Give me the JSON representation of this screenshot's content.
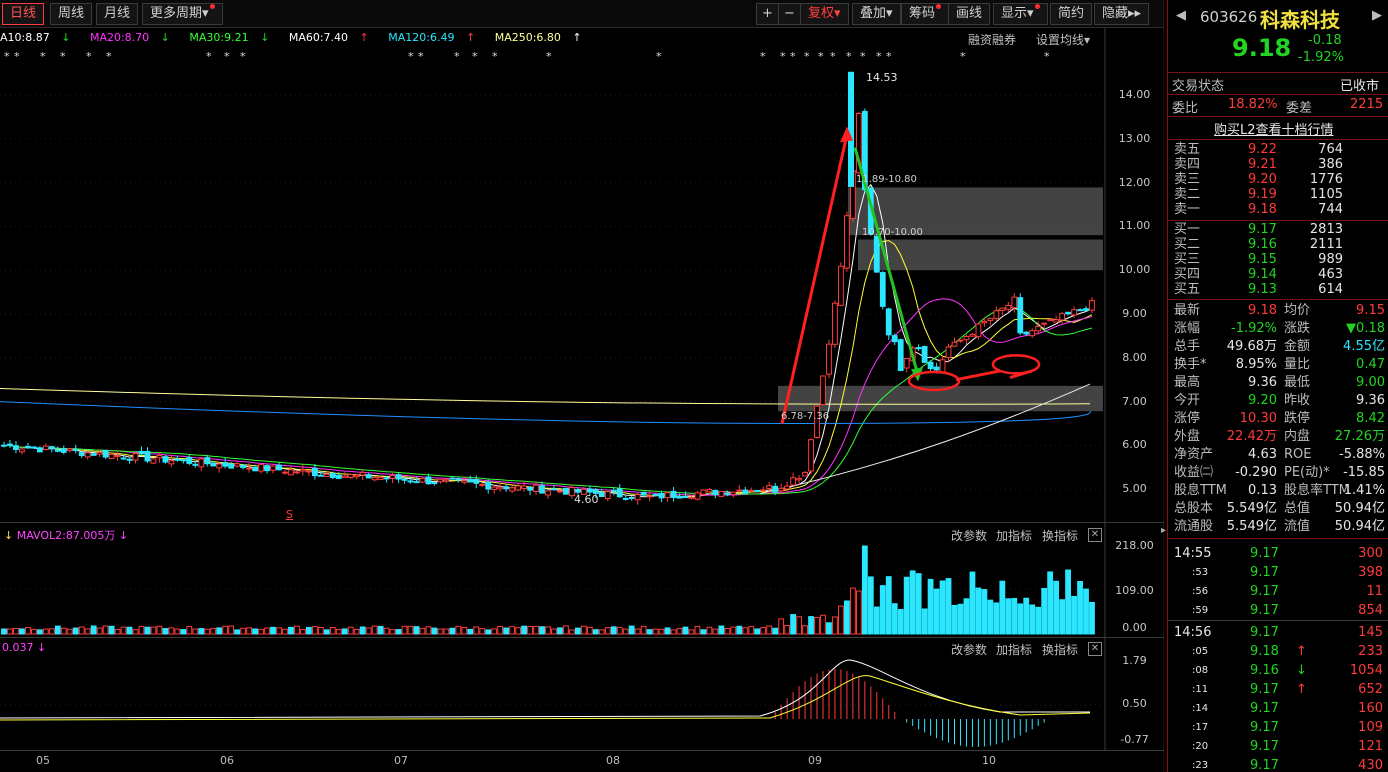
{
  "toolbar": {
    "period_tabs": [
      "日线",
      "周线",
      "月线",
      "更多周期"
    ],
    "tools": [
      "复权",
      "叠加",
      "筹码",
      "画线",
      "显示",
      "简约",
      "隐藏"
    ],
    "plus": "+",
    "minus": "−",
    "hide_arrow": "▸▸"
  },
  "ma_bar": {
    "ma10": "A10:8.87",
    "ma20": "MA20:8.70",
    "ma30": "MA30:9.21",
    "ma60": "MA60:7.40",
    "ma120": "MA120:6.49",
    "ma250": "MA250:6.80",
    "link1": "融资融券",
    "link2": "设置均线"
  },
  "main_axis": [
    "14.00",
    "13.00",
    "12.00",
    "11.00",
    "10.00",
    "9.00",
    "8.00",
    "7.00",
    "6.00",
    "5.00"
  ],
  "annotations": {
    "high": "14.53",
    "low": "4.60",
    "gap1": "11.89-10.80",
    "gap2": "10.70-10.00",
    "gap3": "6.78-7.36",
    "s_mark": "S"
  },
  "vol_panel": {
    "label": "MAVOL2:87.005万",
    "change_params": "改参数",
    "add_ind": "加指标",
    "swap_ind": "换指标",
    "axis": [
      "218.00",
      "109.00",
      "0.00"
    ]
  },
  "macd_panel": {
    "label": "0.037",
    "change_params": "改参数",
    "add_ind": "加指标",
    "swap_ind": "换指标",
    "axis": [
      "1.79",
      "0.50",
      "-0.77"
    ]
  },
  "x_axis": [
    "05",
    "06",
    "07",
    "08",
    "09",
    "10"
  ],
  "colors": {
    "up": "#ff3b3b",
    "down": "#2ae6ff",
    "ma10": "#ffffff",
    "ma20": "#ffff33",
    "ma30": "#ff33ff",
    "ma60": "#33ff33",
    "ma120": "#1e90ff",
    "ma250": "#ffff99"
  },
  "quote": {
    "code": "603626",
    "name": "科森科技",
    "price": "9.18",
    "change": "-0.18",
    "change_pct": "-1.92%",
    "trade_status_label": "交易状态",
    "trade_status": "已收市",
    "ratio_label": "委比",
    "ratio": "18.82%",
    "diff_label": "委差",
    "diff": "2215",
    "l2_link": "购买L2查看十档行情"
  },
  "order_book": {
    "asks": [
      {
        "label": "卖五",
        "price": "9.22",
        "vol": "764"
      },
      {
        "label": "卖四",
        "price": "9.21",
        "vol": "386"
      },
      {
        "label": "卖三",
        "price": "9.20",
        "vol": "1776"
      },
      {
        "label": "卖二",
        "price": "9.19",
        "vol": "1105"
      },
      {
        "label": "卖一",
        "price": "9.18",
        "vol": "744"
      }
    ],
    "bids": [
      {
        "label": "买一",
        "price": "9.17",
        "vol": "2813"
      },
      {
        "label": "买二",
        "price": "9.16",
        "vol": "2111"
      },
      {
        "label": "买三",
        "price": "9.15",
        "vol": "989"
      },
      {
        "label": "买四",
        "price": "9.14",
        "vol": "463"
      },
      {
        "label": "买五",
        "price": "9.13",
        "vol": "614"
      }
    ]
  },
  "stats": [
    {
      "l1": "最新",
      "v1": "9.18",
      "c1": "red",
      "l2": "均价",
      "v2": "9.15",
      "c2": "red"
    },
    {
      "l1": "涨幅",
      "v1": "-1.92%",
      "c1": "grn",
      "l2": "涨跌",
      "v2": "▼0.18",
      "c2": "grn"
    },
    {
      "l1": "总手",
      "v1": "49.68万",
      "c1": "wht",
      "l2": "金额",
      "v2": "4.55亿",
      "c2": "cy"
    },
    {
      "l1": "换手*",
      "v1": "8.95%",
      "c1": "wht",
      "l2": "量比",
      "v2": "0.47",
      "c2": "grn"
    },
    {
      "l1": "最高",
      "v1": "9.36",
      "c1": "wht",
      "l2": "最低",
      "v2": "9.00",
      "c2": "grn"
    },
    {
      "l1": "今开",
      "v1": "9.20",
      "c1": "grn",
      "l2": "昨收",
      "v2": "9.36",
      "c2": "wht"
    },
    {
      "l1": "涨停",
      "v1": "10.30",
      "c1": "red",
      "l2": "跌停",
      "v2": "8.42",
      "c2": "grn"
    },
    {
      "l1": "外盘",
      "v1": "22.42万",
      "c1": "red",
      "l2": "内盘",
      "v2": "27.26万",
      "c2": "grn"
    },
    {
      "l1": "净资产",
      "v1": "4.63",
      "c1": "wht",
      "l2": "ROE",
      "v2": "-5.88%",
      "c2": "wht"
    },
    {
      "l1": "收益㈡",
      "v1": "-0.290",
      "c1": "wht",
      "l2": "PE(动)*",
      "v2": "-15.85",
      "c2": "wht"
    },
    {
      "l1": "股息TTM",
      "v1": "0.13",
      "c1": "wht",
      "l2": "股息率TTM",
      "v2": "1.41%",
      "c2": "wht"
    },
    {
      "l1": "总股本",
      "v1": "5.549亿",
      "c1": "wht",
      "l2": "总值",
      "v2": "50.94亿",
      "c2": "wht"
    },
    {
      "l1": "流通股",
      "v1": "5.549亿",
      "c1": "wht",
      "l2": "流值",
      "v2": "50.94亿",
      "c2": "wht"
    }
  ],
  "ticks": [
    {
      "t": "14:55",
      "p": "9.17",
      "v": "300",
      "arrow": ""
    },
    {
      "t": ":53",
      "p": "9.17",
      "v": "398",
      "arrow": ""
    },
    {
      "t": ":56",
      "p": "9.17",
      "v": "11",
      "arrow": ""
    },
    {
      "t": ":59",
      "p": "9.17",
      "v": "854",
      "arrow": ""
    },
    {
      "t": "14:56",
      "p": "9.17",
      "v": "145",
      "arrow": ""
    },
    {
      "t": ":05",
      "p": "9.18",
      "v": "233",
      "arrow": "↑"
    },
    {
      "t": ":08",
      "p": "9.16",
      "v": "1054",
      "arrow": "↓"
    },
    {
      "t": ":11",
      "p": "9.17",
      "v": "652",
      "arrow": "↑"
    },
    {
      "t": ":14",
      "p": "9.17",
      "v": "160",
      "arrow": ""
    },
    {
      "t": ":17",
      "p": "9.17",
      "v": "109",
      "arrow": ""
    },
    {
      "t": ":20",
      "p": "9.17",
      "v": "121",
      "arrow": ""
    },
    {
      "t": ":23",
      "p": "9.17",
      "v": "430",
      "arrow": ""
    }
  ]
}
